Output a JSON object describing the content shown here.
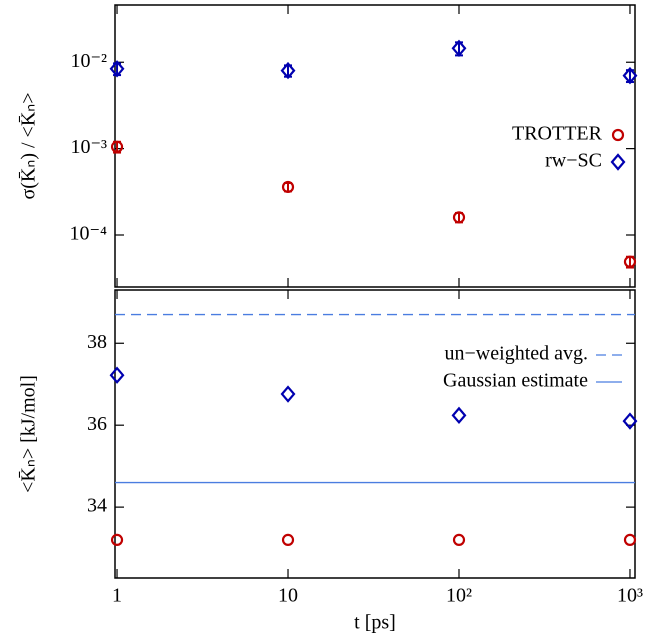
{
  "chart_data": [
    {
      "type": "scatter",
      "ylabel": "σ(K̄ₙ) / <K̄ₙ>",
      "yscale": "log",
      "ylim": [
        2.5e-05,
        0.046
      ],
      "yticks": [
        {
          "value": 0.0001,
          "label": "10⁻⁴"
        },
        {
          "value": 0.001,
          "label": "10⁻³"
        },
        {
          "value": 0.01,
          "label": "10⁻²"
        }
      ],
      "legend": "right",
      "series": [
        {
          "name": "TROTTER",
          "color": "#c00000",
          "marker": "circle",
          "x": [
            1,
            10,
            100,
            1000
          ],
          "values": [
            0.00105,
            0.00036,
            0.00016,
            4.9e-05
          ],
          "errors": [
            0.00015,
            4e-05,
            2e-05,
            7e-06
          ]
        },
        {
          "name": "rw−SC",
          "color": "#0000b0",
          "marker": "diamond",
          "x": [
            1,
            10,
            100,
            1000
          ],
          "values": [
            0.0084,
            0.008,
            0.0145,
            0.007
          ],
          "errors": [
            0.0013,
            0.0012,
            0.0025,
            0.0011
          ]
        }
      ]
    },
    {
      "type": "scatter",
      "ylabel": "<K̄ₙ> [kJ/mol]",
      "xlabel": "t [ps]",
      "xscale": "log",
      "xlim": [
        0.973,
        1070
      ],
      "xticks": [
        1,
        10,
        {
          "value": 100,
          "label": "10²"
        },
        {
          "value": 1000,
          "label": "10³"
        }
      ],
      "ylim": [
        32.27,
        39.3
      ],
      "yticks": [
        34,
        36,
        38
      ],
      "series": [
        {
          "color": "#c00000",
          "marker": "circle",
          "x": [
            1,
            10,
            100,
            1000
          ],
          "values": [
            33.2,
            33.2,
            33.2,
            33.2
          ]
        },
        {
          "color": "#0000b0",
          "marker": "diamond",
          "x": [
            1,
            10,
            100,
            1000
          ],
          "values": [
            37.22,
            36.76,
            36.24,
            36.1
          ]
        }
      ],
      "hlines": [
        {
          "name": "un−weighted avg.",
          "value": 38.7,
          "color": "#4a7de0",
          "style": "dashed"
        },
        {
          "name": "Gaussian estimate",
          "value": 34.6,
          "color": "#4a7de0",
          "style": "solid"
        }
      ]
    }
  ]
}
